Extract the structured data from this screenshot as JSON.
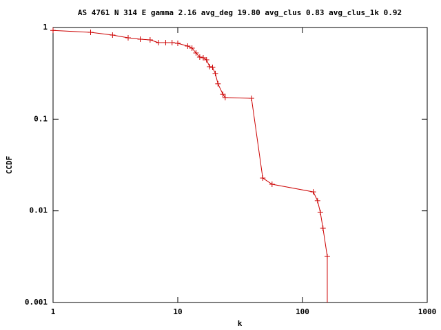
{
  "chart_data": {
    "type": "line",
    "title": "AS 4761 N 314 E gamma 2.16 avg_deg 19.80 avg_clus 0.83 avg_clus_1k 0.92",
    "xlabel": "k",
    "ylabel": "CCDF",
    "xlog": true,
    "ylog": true,
    "xlim": [
      1,
      1000
    ],
    "ylim": [
      0.001,
      1
    ],
    "xticks": [
      1,
      10,
      100,
      1000
    ],
    "yticks": [
      0.001,
      0.01,
      0.1,
      1
    ],
    "series": [
      {
        "color": "#cc0000",
        "marker": "+",
        "x": [
          1,
          2,
          3,
          4,
          5,
          6,
          7,
          8,
          9,
          10,
          12,
          13,
          14,
          15,
          16,
          17,
          18,
          19,
          20,
          21,
          23,
          24,
          39,
          48,
          57,
          122,
          132,
          139,
          146,
          158
        ],
        "values": [
          0.93,
          0.886,
          0.827,
          0.772,
          0.746,
          0.733,
          0.684,
          0.684,
          0.684,
          0.672,
          0.627,
          0.596,
          0.528,
          0.476,
          0.468,
          0.444,
          0.374,
          0.367,
          0.315,
          0.243,
          0.187,
          0.172,
          0.169,
          0.0228,
          0.0195,
          0.0161,
          0.0129,
          0.0096,
          0.00645,
          0.00318
        ]
      }
    ]
  }
}
